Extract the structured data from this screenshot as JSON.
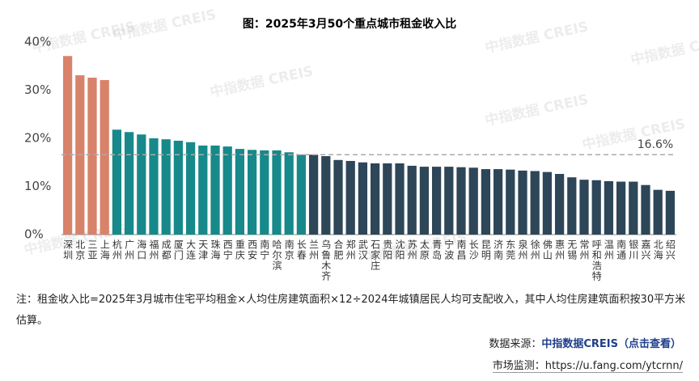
{
  "chart_data": {
    "type": "bar",
    "title": "图：2025年3月50个重点城市租金收入比",
    "categories": [
      "深圳",
      "北京",
      "三亚",
      "上海",
      "杭州",
      "广州",
      "海口",
      "福州",
      "成都",
      "厦门",
      "大连",
      "天津",
      "珠海",
      "西宁",
      "重庆",
      "西安",
      "南宁",
      "哈尔滨",
      "南京",
      "长春",
      "兰州",
      "乌鲁木齐",
      "合肥",
      "郑州",
      "武汉",
      "石家庄",
      "贵阳",
      "沈阳",
      "苏州",
      "太原",
      "青岛",
      "宁波",
      "南昌",
      "长沙",
      "昆明",
      "济南",
      "东莞",
      "泉州",
      "徐州",
      "佛山",
      "惠州",
      "无锡",
      "常州",
      "呼和浩特",
      "温州",
      "南通",
      "银川",
      "嘉兴",
      "北海",
      "绍兴"
    ],
    "values": [
      37.1,
      33.1,
      32.6,
      32.1,
      21.8,
      21.3,
      20.8,
      20.0,
      19.8,
      19.5,
      19.2,
      18.5,
      18.5,
      18.3,
      17.8,
      17.6,
      17.5,
      17.5,
      17.1,
      16.6,
      16.6,
      16.3,
      15.5,
      15.3,
      15.0,
      14.8,
      14.8,
      14.8,
      14.3,
      14.1,
      14.1,
      14.1,
      14.0,
      13.9,
      13.6,
      13.6,
      13.5,
      13.3,
      13.2,
      13.0,
      12.6,
      11.9,
      11.4,
      11.3,
      11.1,
      11.0,
      11.0,
      10.3,
      9.3,
      9.1
    ],
    "colors": [
      "#d9826a",
      "#d9826a",
      "#d9826a",
      "#d9826a",
      "#17898a",
      "#17898a",
      "#17898a",
      "#17898a",
      "#17898a",
      "#17898a",
      "#17898a",
      "#17898a",
      "#17898a",
      "#17898a",
      "#17898a",
      "#17898a",
      "#17898a",
      "#17898a",
      "#17898a",
      "#17898a",
      "#2d4658",
      "#2d4658",
      "#2d4658",
      "#2d4658",
      "#2d4658",
      "#2d4658",
      "#2d4658",
      "#2d4658",
      "#2d4658",
      "#2d4658",
      "#2d4658",
      "#2d4658",
      "#2d4658",
      "#2d4658",
      "#2d4658",
      "#2d4658",
      "#2d4658",
      "#2d4658",
      "#2d4658",
      "#2d4658",
      "#2d4658",
      "#2d4658",
      "#2d4658",
      "#2d4658",
      "#2d4658",
      "#2d4658",
      "#2d4658",
      "#2d4658",
      "#2d4658",
      "#2d4658"
    ],
    "ylim": [
      0,
      40
    ],
    "yticks": [
      {
        "value": 0,
        "label": "0%"
      },
      {
        "value": 10,
        "label": "10%"
      },
      {
        "value": 20,
        "label": "20%"
      },
      {
        "value": 30,
        "label": "30%"
      },
      {
        "value": 40,
        "label": "40%"
      }
    ],
    "reference_line": {
      "value": 16.6,
      "label": "16.6%"
    },
    "watermark": "中指数据 CREIS",
    "note": "注：租金收入比=2025年3月城市住宅平均租金×人均住房建筑面积×12÷2024年城镇居民人均可支配收入，其中人均住房建筑面积按30平方米估算。",
    "source_label": "数据来源：",
    "source_link": "中指数据CREIS（点击查看）",
    "monitor": "市场监测：https://u.fang.com/ytcrnn/"
  }
}
